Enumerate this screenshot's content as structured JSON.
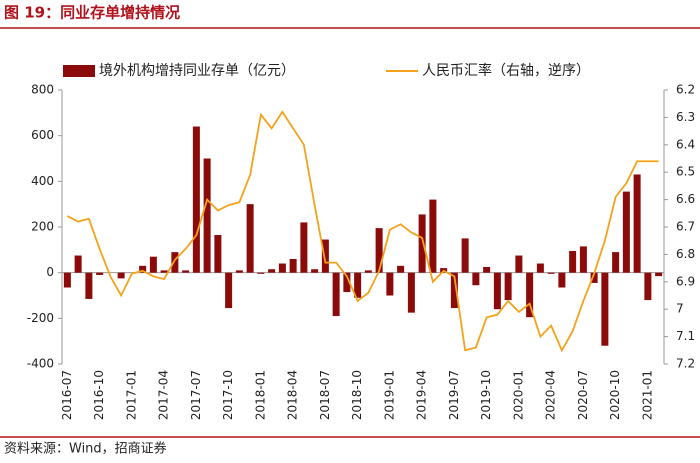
{
  "chart_data": {
    "type": "bar_line",
    "title": "图 19：同业存单增持情况",
    "source": "资料来源：Wind，招商证券",
    "categories": [
      "2016-07",
      null,
      null,
      "2016-10",
      null,
      null,
      "2017-01",
      null,
      null,
      "2017-04",
      null,
      null,
      "2017-07",
      null,
      null,
      "2017-10",
      null,
      null,
      "2018-01",
      null,
      null,
      "2018-04",
      null,
      null,
      "2018-07",
      null,
      null,
      "2018-10",
      null,
      null,
      "2019-01",
      null,
      null,
      "2019-04",
      null,
      null,
      "2019-07",
      null,
      null,
      "2019-10",
      null,
      null,
      "2020-01",
      null,
      null,
      "2020-04",
      null,
      null,
      "2020-07",
      null,
      null,
      "2020-10",
      null,
      null,
      "2021-01",
      null
    ],
    "series": [
      {
        "name": "境外机构增持同业存单（亿元）",
        "color": "#8b0a0a",
        "kind": "bar",
        "values": [
          -65,
          75,
          -115,
          -10,
          0,
          -25,
          0,
          30,
          70,
          10,
          90,
          10,
          640,
          500,
          165,
          -155,
          10,
          300,
          -5,
          15,
          40,
          60,
          220,
          15,
          145,
          -190,
          -85,
          -110,
          10,
          195,
          -100,
          30,
          -175,
          255,
          320,
          20,
          -155,
          150,
          -55,
          25,
          -160,
          -120,
          75,
          -195,
          40,
          -5,
          -65,
          95,
          115,
          -45,
          -320,
          90,
          355,
          430,
          -120,
          -15
        ]
      },
      {
        "name": "人民币汇率（右轴，逆序）",
        "color": "#f5a21b",
        "kind": "line",
        "axis": "y2",
        "values": [
          6.66,
          6.68,
          6.67,
          6.78,
          6.88,
          6.95,
          6.87,
          6.86,
          6.88,
          6.89,
          6.82,
          6.78,
          6.73,
          6.6,
          6.64,
          6.62,
          6.61,
          6.51,
          6.29,
          6.34,
          6.28,
          6.34,
          6.4,
          6.62,
          6.83,
          6.83,
          6.88,
          6.97,
          6.94,
          6.86,
          6.71,
          6.69,
          6.72,
          6.74,
          6.9,
          6.86,
          6.88,
          7.15,
          7.14,
          7.03,
          7.02,
          6.97,
          7.01,
          6.98,
          7.1,
          7.06,
          7.15,
          7.08,
          6.97,
          6.87,
          6.75,
          6.59,
          6.54,
          6.46,
          6.46,
          6.46
        ]
      }
    ],
    "ylim": [
      -400,
      800
    ],
    "yticks": [
      -400,
      -200,
      0,
      200,
      400,
      600,
      800
    ],
    "y2lim": [
      6.2,
      7.2
    ],
    "y2ticks": [
      6.2,
      6.3,
      6.4,
      6.5,
      6.6,
      6.7,
      6.8,
      6.9,
      7,
      7.1,
      7.2
    ],
    "y2_inverted": true,
    "legend": "top"
  }
}
